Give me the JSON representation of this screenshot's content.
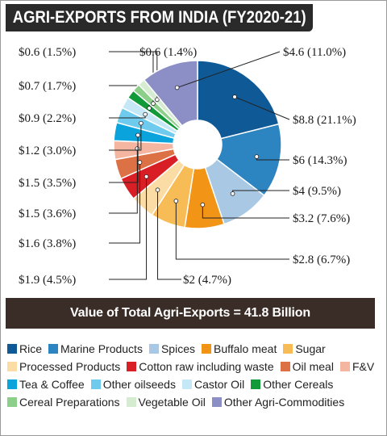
{
  "title": "AGRI-EXPORTS FROM INDIA (FY2020-21)",
  "banner": "Value of Total Agri-Exports = 41.8 Billion",
  "chart_data": {
    "type": "pie",
    "style": "donut",
    "total_billion": 41.8,
    "slices": [
      {
        "name": "Rice",
        "value": 8.8,
        "percent": 21.1,
        "label": "$8.8 (21.1%)",
        "color": "#0f5a96"
      },
      {
        "name": "Marine Products",
        "value": 6,
        "percent": 14.3,
        "label": "$6 (14.3%)",
        "color": "#2c84c1"
      },
      {
        "name": "Spices",
        "value": 4,
        "percent": 9.5,
        "label": "$4 (9.5%)",
        "color": "#a8c8e4"
      },
      {
        "name": "Buffalo meat",
        "value": 3.2,
        "percent": 7.6,
        "label": "$3.2 (7.6%)",
        "color": "#f29415"
      },
      {
        "name": "Sugar",
        "value": 2.8,
        "percent": 6.7,
        "label": "$2.8 (6.7%)",
        "color": "#f7bc55"
      },
      {
        "name": "Processed Products",
        "value": 2,
        "percent": 4.7,
        "label": "$2 (4.7%)",
        "color": "#fbdca4"
      },
      {
        "name": "Cotton raw including waste",
        "value": 1.9,
        "percent": 4.5,
        "label": "$1.9 (4.5%)",
        "color": "#d91f26"
      },
      {
        "name": "Oil meal",
        "value": 1.6,
        "percent": 3.8,
        "label": "$1.6 (3.8%)",
        "color": "#dd7146"
      },
      {
        "name": "F&V",
        "value": 1.5,
        "percent": 3.6,
        "label": "$1.5 (3.6%)",
        "color": "#f4b6a0"
      },
      {
        "name": "Tea & Coffee",
        "value": 1.5,
        "percent": 3.5,
        "label": "$1.5 (3.5%)",
        "color": "#0aa3dc"
      },
      {
        "name": "Other oilseeds",
        "value": 1.2,
        "percent": 3.0,
        "label": "$1.2 (3.0%)",
        "color": "#6fcbee"
      },
      {
        "name": "Castor Oil",
        "value": 0.9,
        "percent": 2.2,
        "label": "$0.9 (2.2%)",
        "color": "#c6e8f6"
      },
      {
        "name": "Other Cereals",
        "value": 0.7,
        "percent": 1.7,
        "label": "$0.7 (1.7%)",
        "color": "#109a3a"
      },
      {
        "name": "Cereal Preparations",
        "value": 0.6,
        "percent": 1.5,
        "label": "$0.6 (1.5%)",
        "color": "#8ccf88"
      },
      {
        "name": "Vegetable Oil",
        "value": 0.6,
        "percent": 1.4,
        "label": "$0.6 (1.4%)",
        "color": "#d6ecd0"
      },
      {
        "name": "Other Agri-Commodities",
        "value": 4.6,
        "percent": 11.0,
        "label": "$4.6 (11.0%)",
        "color": "#8b8fc6"
      }
    ]
  }
}
